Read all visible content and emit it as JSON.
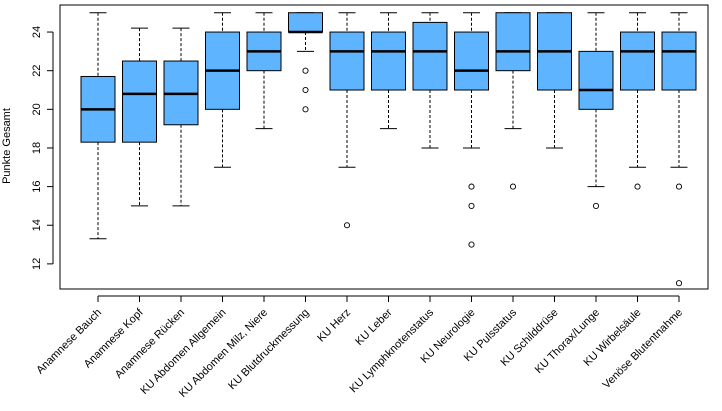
{
  "chart_data": {
    "type": "boxplot",
    "title": "",
    "xlabel": "",
    "ylabel": "Punkte Gesamt",
    "ylim": [
      10.7,
      25.4
    ],
    "yticks": [
      12,
      14,
      16,
      18,
      20,
      22,
      24
    ],
    "box_color": "#5fb4ff",
    "grid": false,
    "categories": [
      "Anamnese Bauch",
      "Anamnese Kopf",
      "Anamnese Rücken",
      "KU Abdomen Allgemein",
      "KU Abdomen Milz, Niere",
      "KU Blutdruckmessung",
      "KU Herz",
      "KU Leber",
      "KU Lymphknotenstatus",
      "KU Neurologie",
      "KU Pulsstatus",
      "KU Schilddrüse",
      "KU Thorax/Lunge",
      "KU Wirbelsäule",
      "Venöse Blutentnahme"
    ],
    "boxes": [
      {
        "whisker_low": 13.3,
        "q1": 18.3,
        "median": 20.0,
        "q3": 21.7,
        "whisker_high": 25.0,
        "outliers": []
      },
      {
        "whisker_low": 15.0,
        "q1": 18.3,
        "median": 20.8,
        "q3": 22.5,
        "whisker_high": 24.2,
        "outliers": []
      },
      {
        "whisker_low": 15.0,
        "q1": 19.2,
        "median": 20.8,
        "q3": 22.5,
        "whisker_high": 24.2,
        "outliers": []
      },
      {
        "whisker_low": 17.0,
        "q1": 20.0,
        "median": 22.0,
        "q3": 24.0,
        "whisker_high": 25.0,
        "outliers": []
      },
      {
        "whisker_low": 19.0,
        "q1": 22.0,
        "median": 23.0,
        "q3": 24.0,
        "whisker_high": 25.0,
        "outliers": []
      },
      {
        "whisker_low": 23.0,
        "q1": 24.0,
        "median": 24.0,
        "q3": 25.0,
        "whisker_high": 25.0,
        "outliers": [
          22,
          21,
          20
        ]
      },
      {
        "whisker_low": 17.0,
        "q1": 21.0,
        "median": 23.0,
        "q3": 24.0,
        "whisker_high": 25.0,
        "outliers": [
          14
        ]
      },
      {
        "whisker_low": 19.0,
        "q1": 21.0,
        "median": 23.0,
        "q3": 24.0,
        "whisker_high": 25.0,
        "outliers": []
      },
      {
        "whisker_low": 18.0,
        "q1": 21.0,
        "median": 23.0,
        "q3": 24.5,
        "whisker_high": 25.0,
        "outliers": []
      },
      {
        "whisker_low": 18.0,
        "q1": 21.0,
        "median": 22.0,
        "q3": 24.0,
        "whisker_high": 25.0,
        "outliers": [
          16,
          15,
          13
        ]
      },
      {
        "whisker_low": 19.0,
        "q1": 22.0,
        "median": 23.0,
        "q3": 25.0,
        "whisker_high": 25.0,
        "outliers": [
          16
        ]
      },
      {
        "whisker_low": 18.0,
        "q1": 21.0,
        "median": 23.0,
        "q3": 25.0,
        "whisker_high": 25.0,
        "outliers": []
      },
      {
        "whisker_low": 16.0,
        "q1": 20.0,
        "median": 21.0,
        "q3": 23.0,
        "whisker_high": 25.0,
        "outliers": [
          15
        ]
      },
      {
        "whisker_low": 17.0,
        "q1": 21.0,
        "median": 23.0,
        "q3": 24.0,
        "whisker_high": 25.0,
        "outliers": [
          16
        ]
      },
      {
        "whisker_low": 17.0,
        "q1": 21.0,
        "median": 23.0,
        "q3": 24.0,
        "whisker_high": 25.0,
        "outliers": [
          16,
          11
        ]
      }
    ]
  }
}
